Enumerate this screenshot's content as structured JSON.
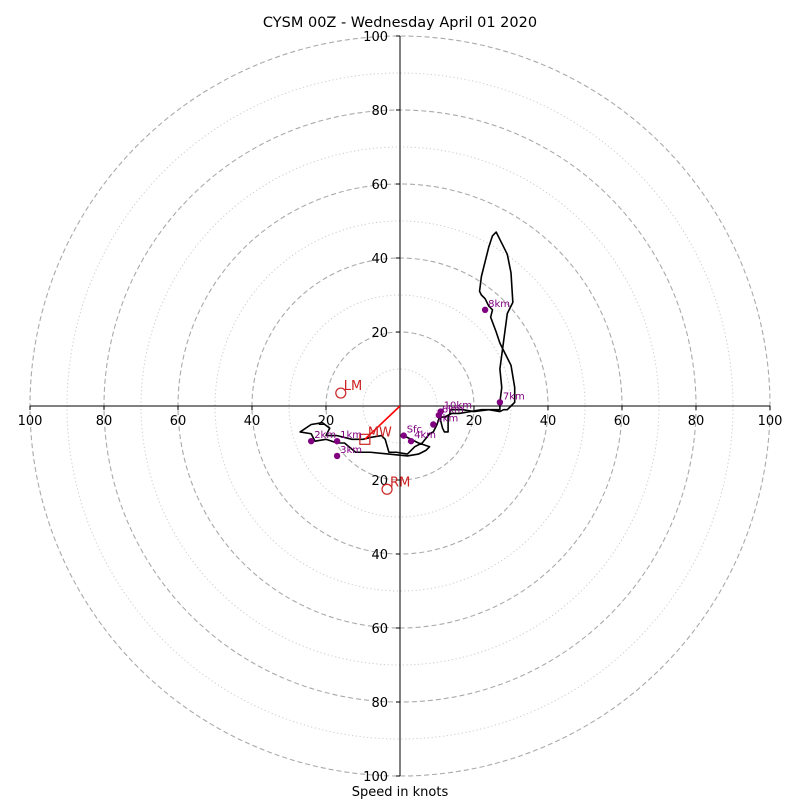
{
  "title": "CYSM 00Z - Wednesday April 01 2020",
  "chart_data": {
    "type": "line",
    "title": "CYSM 00Z - Wednesday April 01 2020",
    "xlabel": "Speed in knots",
    "ylabel": "",
    "xlim": [
      -100,
      100
    ],
    "ylim": [
      -100,
      100
    ],
    "ring_ticks": [
      20,
      40,
      60,
      80,
      100
    ],
    "axis_tick_labels": [
      "100",
      "80",
      "60",
      "40",
      "20",
      "20",
      "40",
      "60",
      "80",
      "100"
    ],
    "grid": true,
    "colors": {
      "trace": "#000000",
      "height_marker": "#800080",
      "motion": "#cc2222",
      "mean_wind": "#ff0000",
      "grid": "#aaaaaa"
    },
    "hodograph": {
      "u": [
        1,
        3,
        5,
        8,
        7,
        5,
        2,
        -3,
        -8,
        -12,
        -15,
        -17,
        -20,
        -23,
        -24,
        -27,
        -24,
        -21,
        -19,
        -20,
        -17,
        -13,
        -10,
        -8,
        -5,
        -4,
        -3,
        -1,
        2,
        4,
        6,
        8,
        9,
        10,
        10.5,
        11,
        12,
        13,
        14,
        16,
        19,
        22,
        27,
        27,
        27.5,
        27,
        29,
        30.5,
        30,
        29,
        27.5,
        26,
        25,
        24,
        23,
        22,
        21.5,
        22,
        23,
        24,
        25,
        24.5,
        26,
        27,
        30,
        31,
        31,
        30,
        29,
        28,
        27,
        24,
        20,
        17,
        13.5,
        13.5,
        13,
        13,
        13,
        12,
        11.5,
        11,
        11
      ],
      "v": [
        -8,
        -9,
        -10,
        -11,
        -12,
        -13,
        -13.5,
        -13,
        -12.5,
        -12.5,
        -10,
        -10,
        -9,
        -9.5,
        -7.5,
        -7,
        -5,
        -4.5,
        -6,
        -8,
        -8,
        -9,
        -9,
        -8.5,
        -8,
        -9,
        -12.5,
        -12.5,
        -13,
        -11,
        -10,
        -7.5,
        -7,
        -5,
        -3.5,
        -3,
        -3,
        -2.5,
        -2,
        -2,
        -1.5,
        -1,
        -1,
        1,
        5,
        10,
        25,
        28,
        36,
        41,
        44,
        47,
        46,
        43,
        39,
        35,
        31,
        30,
        29,
        27,
        26,
        24,
        20,
        17,
        11,
        5,
        1,
        0,
        -1,
        -1,
        -1.5,
        -1,
        -1.5,
        -1,
        -1,
        -2,
        -3,
        -5,
        -7,
        -7,
        -6,
        -4,
        -3
      ]
    },
    "height_markers": [
      {
        "label": "Sfc",
        "u": 1,
        "v": -8
      },
      {
        "label": "1km",
        "u": -17,
        "v": -9.5
      },
      {
        "label": "2km",
        "u": -24,
        "v": -9.5
      },
      {
        "label": "3km",
        "u": -17,
        "v": -13.5
      },
      {
        "label": "4km",
        "u": 3,
        "v": -9.5
      },
      {
        "label": "5km",
        "u": 9,
        "v": -5
      },
      {
        "label": "6km",
        "u": 10.5,
        "v": -2.5
      },
      {
        "label": "7km",
        "u": 27,
        "v": 1
      },
      {
        "label": "8km",
        "u": 23,
        "v": 26
      },
      {
        "label": "10km",
        "u": 11,
        "v": -1.5
      }
    ],
    "storm_motion": [
      {
        "label": "LM",
        "u": -16,
        "v": 3.5
      },
      {
        "label": "RM",
        "u": -3.5,
        "v": -22.5
      },
      {
        "label": "MW",
        "u": -9.5,
        "v": -9
      }
    ]
  }
}
